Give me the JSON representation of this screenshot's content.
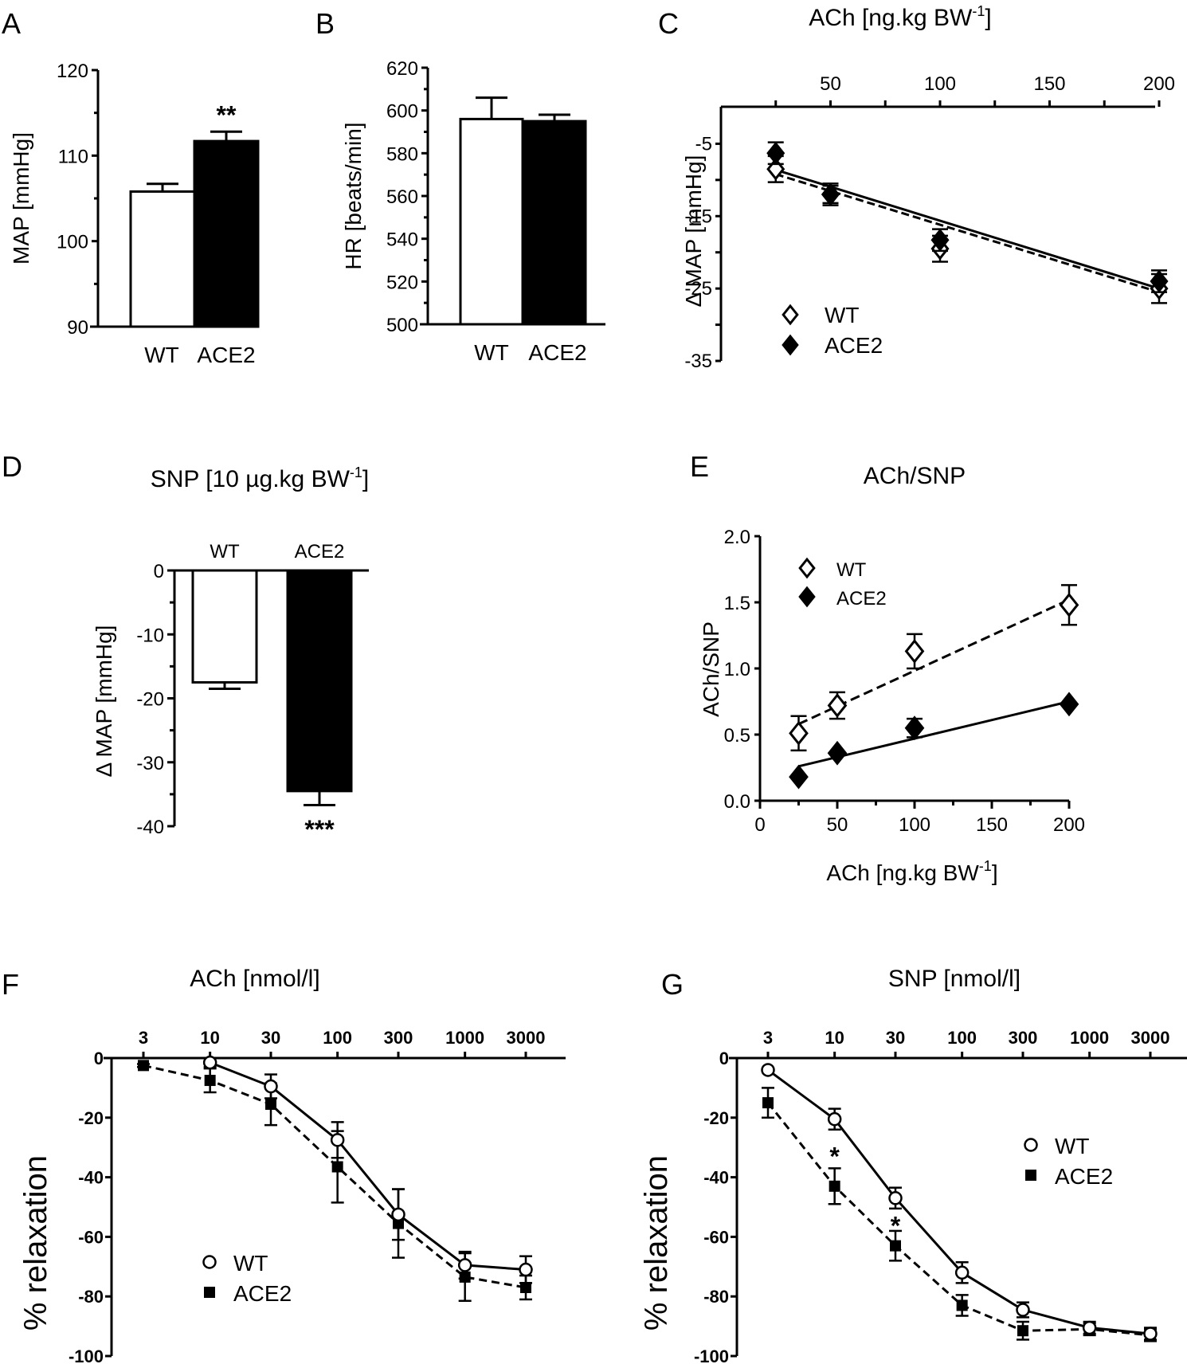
{
  "figure": {
    "colors": {
      "ink": "#000000",
      "open_fill": "#ffffff"
    }
  },
  "chart_data": [
    {
      "id": "A",
      "panel": "A",
      "type": "bar",
      "title": "",
      "xlabel": "",
      "ylabel": "MAP [mmHg]",
      "ylim": [
        90,
        120
      ],
      "yticks": [
        90,
        100,
        110,
        120
      ],
      "ytick_labels": [
        "90",
        "100",
        "110",
        "120"
      ],
      "categories": [
        "WT",
        "ACE2"
      ],
      "values": [
        105.8,
        111.7
      ],
      "errors": [
        0.9,
        1.1
      ],
      "fills": [
        "#ffffff",
        "#000000"
      ],
      "annotations": [
        {
          "category": "ACE2",
          "text": "**"
        }
      ]
    },
    {
      "id": "B",
      "panel": "B",
      "type": "bar",
      "title": "",
      "xlabel": "",
      "ylabel": "HR [beats/min]",
      "ylim": [
        500,
        620
      ],
      "yticks": [
        500,
        520,
        540,
        560,
        580,
        600,
        620
      ],
      "ytick_labels": [
        "500",
        "520",
        "540",
        "560",
        "580",
        "600",
        "620"
      ],
      "categories": [
        "WT",
        "ACE2"
      ],
      "values": [
        596,
        595
      ],
      "errors": [
        10,
        3
      ],
      "fills": [
        "#ffffff",
        "#000000"
      ],
      "annotations": []
    },
    {
      "id": "C",
      "panel": "C",
      "type": "scatter",
      "title": "ACh [ng.kg BW-1]",
      "title_main": "ACh [ng.kg BW",
      "title_sup": "-1",
      "title_end": "]",
      "xlabel": "",
      "ylabel": "Δ MAP [mmHg]",
      "xlim": [
        0,
        200
      ],
      "ylim": [
        -35,
        0
      ],
      "xaxis_position": "top",
      "xticks": [
        50,
        100,
        150,
        200
      ],
      "xtick_labels": [
        "50",
        "100",
        "150",
        "200"
      ],
      "yticks": [
        -5,
        -15,
        -25,
        -35
      ],
      "ytick_labels": [
        "-5",
        "-15",
        "-25",
        "-35"
      ],
      "x": [
        25,
        50,
        100,
        200
      ],
      "series": [
        {
          "name": "WT",
          "marker": "diamond-open",
          "values": [
            -8.5,
            -12.0,
            -19.5,
            -25.0
          ],
          "errors": [
            1.8,
            1.2,
            1.8,
            2.0
          ],
          "fit": {
            "style": "dashed",
            "from": [
              25,
              -9.2
            ],
            "to": [
              200,
              -25.5
            ]
          }
        },
        {
          "name": "ACE2",
          "marker": "diamond-filled",
          "values": [
            -6.3,
            -12.0,
            -18.3,
            -24.0
          ],
          "errors": [
            1.5,
            1.5,
            1.5,
            1.5
          ],
          "fit": {
            "style": "solid",
            "from": [
              25,
              -8.6
            ],
            "to": [
              200,
              -25.0
            ]
          }
        }
      ],
      "legend": "bottom-left"
    },
    {
      "id": "D",
      "panel": "D",
      "type": "bar",
      "title": "SNP [10 µg.kg BW-1]",
      "title_main": "SNP [10 µg.kg BW",
      "title_sup": "-1",
      "title_end": "]",
      "xlabel": "",
      "ylabel": "Δ MAP [mmHg]",
      "ylim": [
        -40,
        0
      ],
      "yticks": [
        0,
        -10,
        -20,
        -30,
        -40
      ],
      "ytick_labels": [
        "0",
        "-10",
        "-20",
        "-30",
        "-40"
      ],
      "categories": [
        "WT",
        "ACE2"
      ],
      "category_position": "top",
      "values": [
        -17.5,
        -34.5
      ],
      "errors": [
        1.0,
        2.2
      ],
      "fills": [
        "#ffffff",
        "#000000"
      ],
      "annotations": [
        {
          "category": "ACE2",
          "text": "***"
        }
      ]
    },
    {
      "id": "E",
      "panel": "E",
      "type": "scatter",
      "title": "ACh/SNP",
      "xlabel": "ACh [ng.kg BW-1]",
      "xlabel_main": "ACh [ng.kg BW",
      "xlabel_sup": "-1",
      "xlabel_end": "]",
      "ylabel": "ACh/SNP",
      "xlim": [
        0,
        200
      ],
      "ylim": [
        0,
        2.0
      ],
      "xticks": [
        0,
        50,
        100,
        150,
        200
      ],
      "xtick_labels": [
        "0",
        "50",
        "100",
        "150",
        "200"
      ],
      "yticks": [
        0.0,
        0.5,
        1.0,
        1.5,
        2.0
      ],
      "ytick_labels": [
        "0.0",
        "0.5",
        "1.0",
        "1.5",
        "2.0"
      ],
      "x": [
        25,
        50,
        100,
        200
      ],
      "series": [
        {
          "name": "WT",
          "marker": "diamond-open",
          "values": [
            0.51,
            0.72,
            1.13,
            1.48
          ],
          "errors": [
            0.13,
            0.1,
            0.13,
            0.15
          ],
          "fit": {
            "style": "dashed",
            "from": [
              25,
              0.58
            ],
            "to": [
              200,
              1.52
            ]
          }
        },
        {
          "name": "ACE2",
          "marker": "diamond-filled",
          "values": [
            0.18,
            0.36,
            0.55,
            0.73
          ],
          "errors": [
            0.0,
            0.0,
            0.07,
            0.0
          ],
          "fit": {
            "style": "solid",
            "from": [
              25,
              0.26
            ],
            "to": [
              200,
              0.75
            ]
          }
        }
      ],
      "legend": "top-left"
    },
    {
      "id": "F",
      "panel": "F",
      "type": "line",
      "title": "ACh [nmol/l]",
      "xlabel": "",
      "ylabel": "% relaxation",
      "xscale": "log",
      "xaxis_position": "top",
      "ylim": [
        -100,
        0
      ],
      "x": [
        3,
        10,
        30,
        100,
        300,
        1000,
        3000
      ],
      "xtick_labels": [
        "3",
        "10",
        "30",
        "100",
        "300",
        "1000",
        "3000"
      ],
      "yticks": [
        0,
        -20,
        -40,
        -60,
        -80,
        -100
      ],
      "ytick_labels": [
        "0",
        "-20",
        "-40",
        "-60",
        "-80",
        "-100"
      ],
      "series": [
        {
          "name": "WT",
          "marker": "circle-open",
          "line": "solid",
          "values": [
            null,
            -1.5,
            -9.5,
            -27.5,
            -52.5,
            -69.5,
            -71.0
          ],
          "errors": [
            0,
            1.5,
            4.0,
            6.0,
            8.5,
            4.5,
            4.5
          ]
        },
        {
          "name": "ACE2",
          "marker": "square-filled",
          "line": "dashed",
          "values": [
            -2.5,
            -7.5,
            -15.5,
            -36.5,
            -55.5,
            -73.5,
            -77.0
          ],
          "errors": [
            0.5,
            4.0,
            7.0,
            12.0,
            11.5,
            8.0,
            4.0
          ]
        }
      ],
      "legend": "bottom-left"
    },
    {
      "id": "G",
      "panel": "G",
      "type": "line",
      "title": "SNP [nmol/l]",
      "xlabel": "",
      "ylabel": "% relaxation",
      "xscale": "log",
      "xaxis_position": "top",
      "ylim": [
        -100,
        0
      ],
      "x": [
        3,
        10,
        30,
        100,
        300,
        1000,
        3000
      ],
      "xtick_labels": [
        "3",
        "10",
        "30",
        "100",
        "300",
        "1000",
        "3000"
      ],
      "yticks": [
        0,
        -20,
        -40,
        -60,
        -80,
        -100
      ],
      "ytick_labels": [
        "0",
        "-20",
        "-40",
        "-60",
        "-80",
        "-100"
      ],
      "series": [
        {
          "name": "WT",
          "marker": "circle-open",
          "line": "solid",
          "values": [
            -4.0,
            -20.5,
            -47.0,
            -72.0,
            -84.5,
            -90.5,
            -92.5
          ],
          "errors": [
            0,
            3.5,
            3.5,
            3.5,
            2.5,
            2.0,
            2.0
          ]
        },
        {
          "name": "ACE2",
          "marker": "square-filled",
          "line": "dashed",
          "values": [
            -15.0,
            -43.0,
            -63.0,
            -83.0,
            -91.5,
            -91.0,
            -93.0
          ],
          "errors": [
            5.0,
            6.0,
            5.0,
            3.5,
            3.0,
            2.0,
            2.0
          ]
        }
      ],
      "annotations": [
        {
          "x": 10,
          "text": "*"
        },
        {
          "x": 30,
          "text": "*"
        }
      ],
      "legend": "top-right"
    }
  ]
}
